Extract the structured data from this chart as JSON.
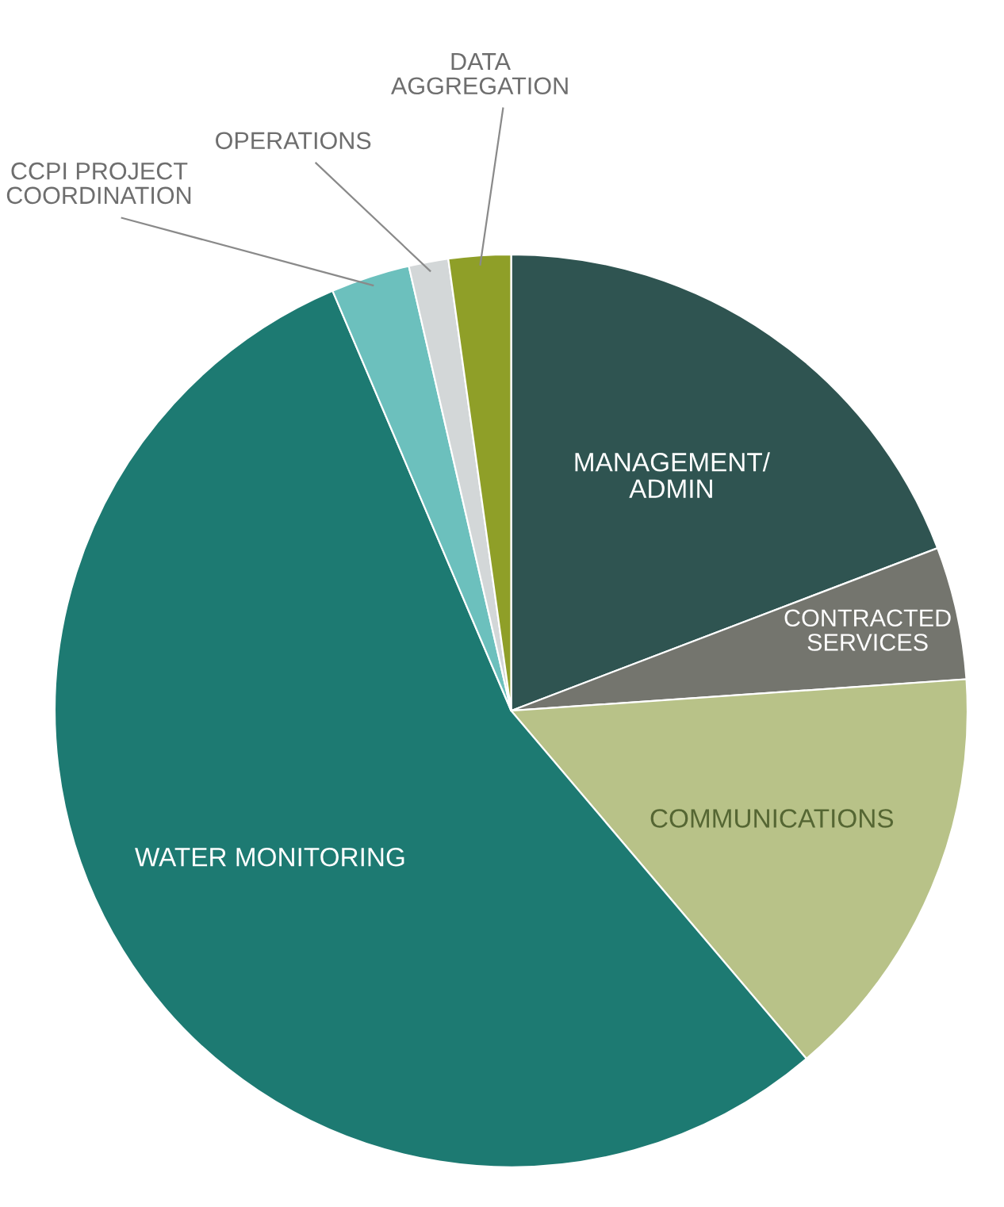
{
  "chart_data": {
    "type": "pie",
    "categories": [
      "MANAGEMENT/\nADMIN",
      "CONTRACTED\nSERVICES",
      "COMMUNICATIONS",
      "WATER MONITORING",
      "CCPI PROJECT\nCOORDINATION",
      "OPERATIONS",
      "DATA\nAGGREGATION"
    ],
    "values": [
      19.2,
      4.7,
      14.9,
      54.8,
      2.8,
      1.4,
      2.2
    ],
    "colors": [
      "#2f5451",
      "#74756e",
      "#b8c288",
      "#1d7a72",
      "#6cc0bd",
      "#d3d7d8",
      "#8f9f28"
    ]
  }
}
